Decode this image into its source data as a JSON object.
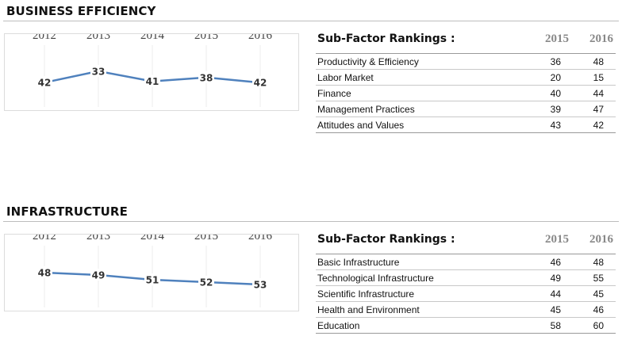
{
  "sections": [
    {
      "title": "BUSINESS EFFICIENCY",
      "subfactor_heading": "Sub-Factor Rankings :",
      "year_headers": [
        "2015",
        "2016"
      ],
      "rows": [
        {
          "name": "Productivity & Efficiency",
          "y2015": "36",
          "y2016": "48"
        },
        {
          "name": "Labor Market",
          "y2015": "20",
          "y2016": "15"
        },
        {
          "name": "Finance",
          "y2015": "40",
          "y2016": "44"
        },
        {
          "name": "Management Practices",
          "y2015": "39",
          "y2016": "47"
        },
        {
          "name": "Attitudes and Values",
          "y2015": "43",
          "y2016": "42"
        }
      ]
    },
    {
      "title": "INFRASTRUCTURE",
      "subfactor_heading": "Sub-Factor Rankings :",
      "year_headers": [
        "2015",
        "2016"
      ],
      "rows": [
        {
          "name": "Basic Infrastructure",
          "y2015": "46",
          "y2016": "48"
        },
        {
          "name": "Technological Infrastructure",
          "y2015": "49",
          "y2016": "55"
        },
        {
          "name": "Scientific Infrastructure",
          "y2015": "44",
          "y2016": "45"
        },
        {
          "name": "Health and Environment",
          "y2015": "45",
          "y2016": "46"
        },
        {
          "name": "Education",
          "y2015": "58",
          "y2016": "60"
        }
      ]
    }
  ],
  "chart_data": [
    {
      "type": "line",
      "title": "",
      "x": [
        "2012",
        "2013",
        "2014",
        "2015",
        "2016"
      ],
      "series": [
        {
          "values": [
            42,
            33,
            41,
            38,
            42
          ]
        }
      ],
      "ylim": [
        30,
        45
      ],
      "y_inverted": true,
      "grid": true,
      "line_color": "#4f81bd"
    },
    {
      "type": "line",
      "title": "",
      "x": [
        "2012",
        "2013",
        "2014",
        "2015",
        "2016"
      ],
      "series": [
        {
          "values": [
            48,
            49,
            51,
            52,
            53
          ]
        }
      ],
      "ylim": [
        46,
        54
      ],
      "y_inverted": true,
      "grid": true,
      "line_color": "#4f81bd"
    }
  ]
}
